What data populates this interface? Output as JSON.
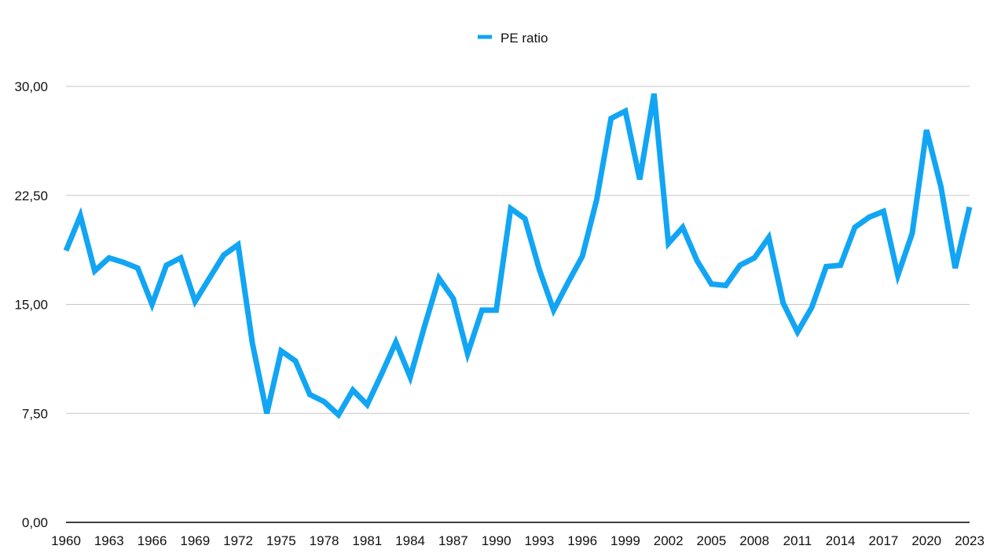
{
  "chart_data": {
    "type": "line",
    "x": [
      1960,
      1961,
      1962,
      1963,
      1964,
      1965,
      1966,
      1967,
      1968,
      1969,
      1970,
      1971,
      1972,
      1973,
      1974,
      1975,
      1976,
      1977,
      1978,
      1979,
      1980,
      1981,
      1982,
      1983,
      1984,
      1985,
      1986,
      1987,
      1988,
      1989,
      1990,
      1991,
      1992,
      1993,
      1994,
      1995,
      1996,
      1997,
      1998,
      1999,
      2000,
      2001,
      2002,
      2003,
      2004,
      2005,
      2006,
      2007,
      2008,
      2009,
      2010,
      2011,
      2012,
      2013,
      2014,
      2015,
      2016,
      2017,
      2018,
      2019,
      2020,
      2021,
      2022,
      2023
    ],
    "xticks": [
      "1960",
      "1963",
      "1966",
      "1969",
      "1972",
      "1975",
      "1978",
      "1981",
      "1984",
      "1987",
      "1990",
      "1993",
      "1996",
      "1999",
      "2002",
      "2005",
      "2008",
      "2011",
      "2014",
      "2017",
      "2020",
      "2023"
    ],
    "series": [
      {
        "name": "PE ratio",
        "color": "#12a5f4",
        "values": [
          18.7,
          21.1,
          17.3,
          18.2,
          17.9,
          17.5,
          15.0,
          17.7,
          18.2,
          15.2,
          16.8,
          18.4,
          19.1,
          12.3,
          7.5,
          11.8,
          11.1,
          8.8,
          8.3,
          7.4,
          9.1,
          8.1,
          10.2,
          12.4,
          10.0,
          13.5,
          16.8,
          15.4,
          11.6,
          14.6,
          14.6,
          21.6,
          20.9,
          17.4,
          14.6,
          16.5,
          18.3,
          22.2,
          27.8,
          28.3,
          23.6,
          29.5,
          19.2,
          20.3,
          18.0,
          16.4,
          16.3,
          17.7,
          18.2,
          19.6,
          15.1,
          13.1,
          14.8,
          17.6,
          17.7,
          20.3,
          21.0,
          21.4,
          17.0,
          19.9,
          27.0,
          23.1,
          17.5,
          21.7
        ]
      }
    ],
    "yticks": [
      "0,00",
      "7,50",
      "15,00",
      "22,50",
      "30,00"
    ],
    "ylim": [
      0,
      30
    ],
    "grid": true,
    "legend_position": "top-center"
  }
}
